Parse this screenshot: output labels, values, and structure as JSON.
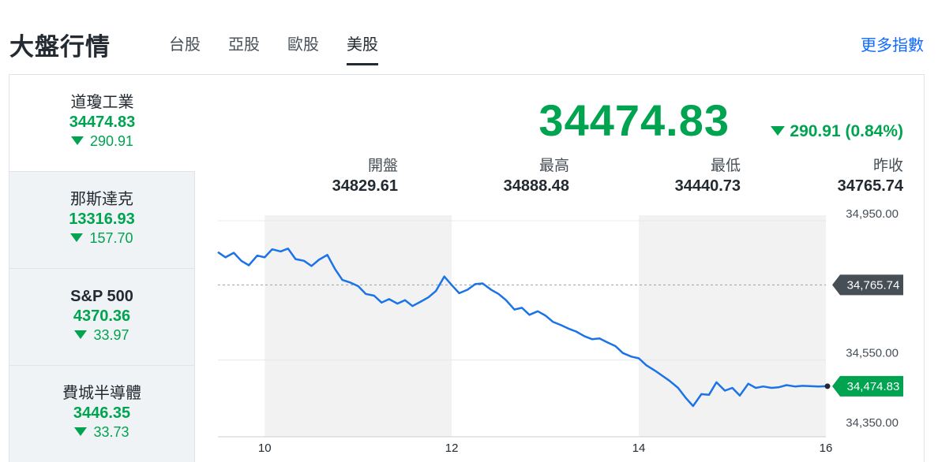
{
  "header": {
    "title": "大盤行情",
    "tabs": [
      {
        "label": "台股",
        "active": false
      },
      {
        "label": "亞股",
        "active": false
      },
      {
        "label": "歐股",
        "active": false
      },
      {
        "label": "美股",
        "active": true
      }
    ],
    "more_link": "更多指數"
  },
  "sidebar": {
    "items": [
      {
        "name": "道瓊工業",
        "value": "34474.83",
        "change": "290.91",
        "direction": "down",
        "active": true
      },
      {
        "name": "那斯達克",
        "value": "13316.93",
        "change": "157.70",
        "direction": "down",
        "active": false
      },
      {
        "name": "S&P 500",
        "value": "4370.36",
        "change": "33.97",
        "direction": "down",
        "active": false
      },
      {
        "name": "費城半導體",
        "value": "3446.35",
        "change": "33.73",
        "direction": "down",
        "active": false
      }
    ]
  },
  "quote": {
    "price": "34474.83",
    "change": "290.91 (0.84%)",
    "direction": "down",
    "open_label": "開盤",
    "open": "34829.61",
    "high_label": "最高",
    "high": "34888.48",
    "low_label": "最低",
    "low": "34440.73",
    "prev_label": "昨收",
    "prev": "34765.74"
  },
  "colors": {
    "down": "#00a350",
    "line": "#1a73e8",
    "shade": "#f2f2f2",
    "prev_badge": "#464e56"
  },
  "chart_data": {
    "type": "line",
    "x_ticks": [
      "10",
      "12",
      "14",
      "16"
    ],
    "y_ticks": [
      "34,950.00",
      "34,550.00",
      "34,350.00"
    ],
    "x_range": [
      9.5,
      16
    ],
    "y_range": [
      34350,
      34950
    ],
    "prev_close": 34765.74,
    "prev_close_label": "34,765.74",
    "last_label": "34,474.83",
    "shaded_hours": [
      [
        10,
        12
      ],
      [
        14,
        16
      ]
    ],
    "series": [
      {
        "x": [
          9.5,
          9.58,
          9.67,
          9.75,
          9.83,
          9.92,
          10.0,
          10.08,
          10.17,
          10.25,
          10.33,
          10.42,
          10.5,
          10.58,
          10.67,
          10.75,
          10.83,
          10.92,
          11.0,
          11.08,
          11.17,
          11.25,
          11.33,
          11.42,
          11.5,
          11.58,
          11.67,
          11.75,
          11.83,
          11.92,
          12.0,
          12.08,
          12.17,
          12.25,
          12.33,
          12.42,
          12.5,
          12.58,
          12.67,
          12.75,
          12.83,
          12.92,
          13.0,
          13.08,
          13.17,
          13.25,
          13.33,
          13.42,
          13.5,
          13.58,
          13.67,
          13.75,
          13.83,
          13.92,
          14.0,
          14.08,
          14.17,
          14.25,
          14.33,
          14.42,
          14.5,
          14.58,
          14.67,
          14.75,
          14.83,
          14.92,
          15.0,
          15.08,
          15.17,
          15.25,
          15.33,
          15.42,
          15.5,
          15.58,
          15.67,
          15.75,
          15.83,
          15.92,
          16.0
        ],
        "y": [
          34860,
          34845,
          34858,
          34835,
          34822,
          34850,
          34845,
          34868,
          34862,
          34870,
          34840,
          34835,
          34820,
          34838,
          34852,
          34812,
          34780,
          34772,
          34762,
          34740,
          34735,
          34715,
          34725,
          34712,
          34722,
          34705,
          34718,
          34730,
          34748,
          34790,
          34765,
          34742,
          34752,
          34768,
          34770,
          34752,
          34740,
          34722,
          34695,
          34700,
          34680,
          34690,
          34678,
          34660,
          34650,
          34640,
          34632,
          34618,
          34610,
          34612,
          34600,
          34590,
          34570,
          34560,
          34555,
          34535,
          34520,
          34505,
          34490,
          34470,
          34442,
          34418,
          34452,
          34450,
          34486,
          34462,
          34470,
          34448,
          34482,
          34470,
          34474,
          34470,
          34472,
          34478,
          34474,
          34476,
          34475,
          34474,
          34474.83
        ]
      }
    ]
  }
}
